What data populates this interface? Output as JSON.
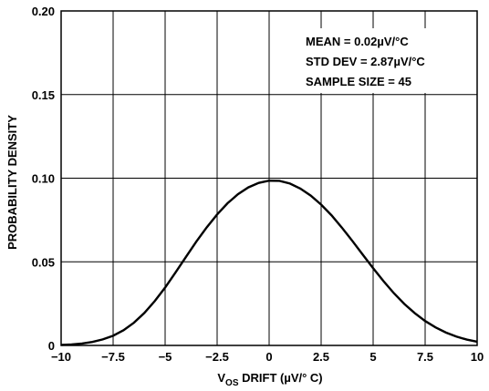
{
  "chart_data": {
    "type": "line",
    "xlabel_main": "V",
    "xlabel_sub": "OS",
    "xlabel_rest": " DRIFT (µV/° C)",
    "ylabel": "PROBABILITY DENSITY",
    "xlim": [
      -10,
      10
    ],
    "ylim": [
      0,
      0.2
    ],
    "x_ticks": [
      -10,
      -7.5,
      -5,
      -2.5,
      0,
      2.5,
      5,
      7.5,
      10
    ],
    "x_tick_labels": [
      "−10",
      "−7.5",
      "−5",
      "−2.5",
      "0",
      "2.5",
      "5",
      "7.5",
      "10"
    ],
    "y_ticks": [
      0,
      0.05,
      0.1,
      0.15,
      0.2
    ],
    "y_tick_labels": [
      "0",
      "0.05",
      "0.10",
      "0.15",
      "0.20"
    ],
    "grid": true,
    "annotations": [
      "MEAN = 0.02µV/°C",
      "STD DEV = 2.87µV/°C",
      "SAMPLE SIZE = 45"
    ],
    "series": [
      {
        "x": [
          -10,
          -9.5,
          -9,
          -8.5,
          -8,
          -7.5,
          -7,
          -6.5,
          -6,
          -5.5,
          -5,
          -4.5,
          -4,
          -3.5,
          -3,
          -2.5,
          -2,
          -1.5,
          -1,
          -0.5,
          0,
          0.5,
          1,
          1.5,
          2,
          2.5,
          3,
          3.5,
          4,
          4.5,
          5,
          5.5,
          6,
          6.5,
          7,
          7.5,
          8,
          8.5,
          9,
          9.5,
          10
        ],
        "y": [
          0.0003,
          0.0006,
          0.0011,
          0.0021,
          0.0036,
          0.0058,
          0.0091,
          0.0136,
          0.0194,
          0.0265,
          0.0346,
          0.0436,
          0.0529,
          0.0621,
          0.0706,
          0.0783,
          0.085,
          0.0904,
          0.0945,
          0.0972,
          0.0985,
          0.0984,
          0.0968,
          0.0938,
          0.0896,
          0.0842,
          0.0778,
          0.0704,
          0.0625,
          0.0543,
          0.0462,
          0.0384,
          0.0312,
          0.0248,
          0.0193,
          0.0146,
          0.0108,
          0.0077,
          0.0053,
          0.0035,
          0.0022
        ]
      }
    ]
  }
}
